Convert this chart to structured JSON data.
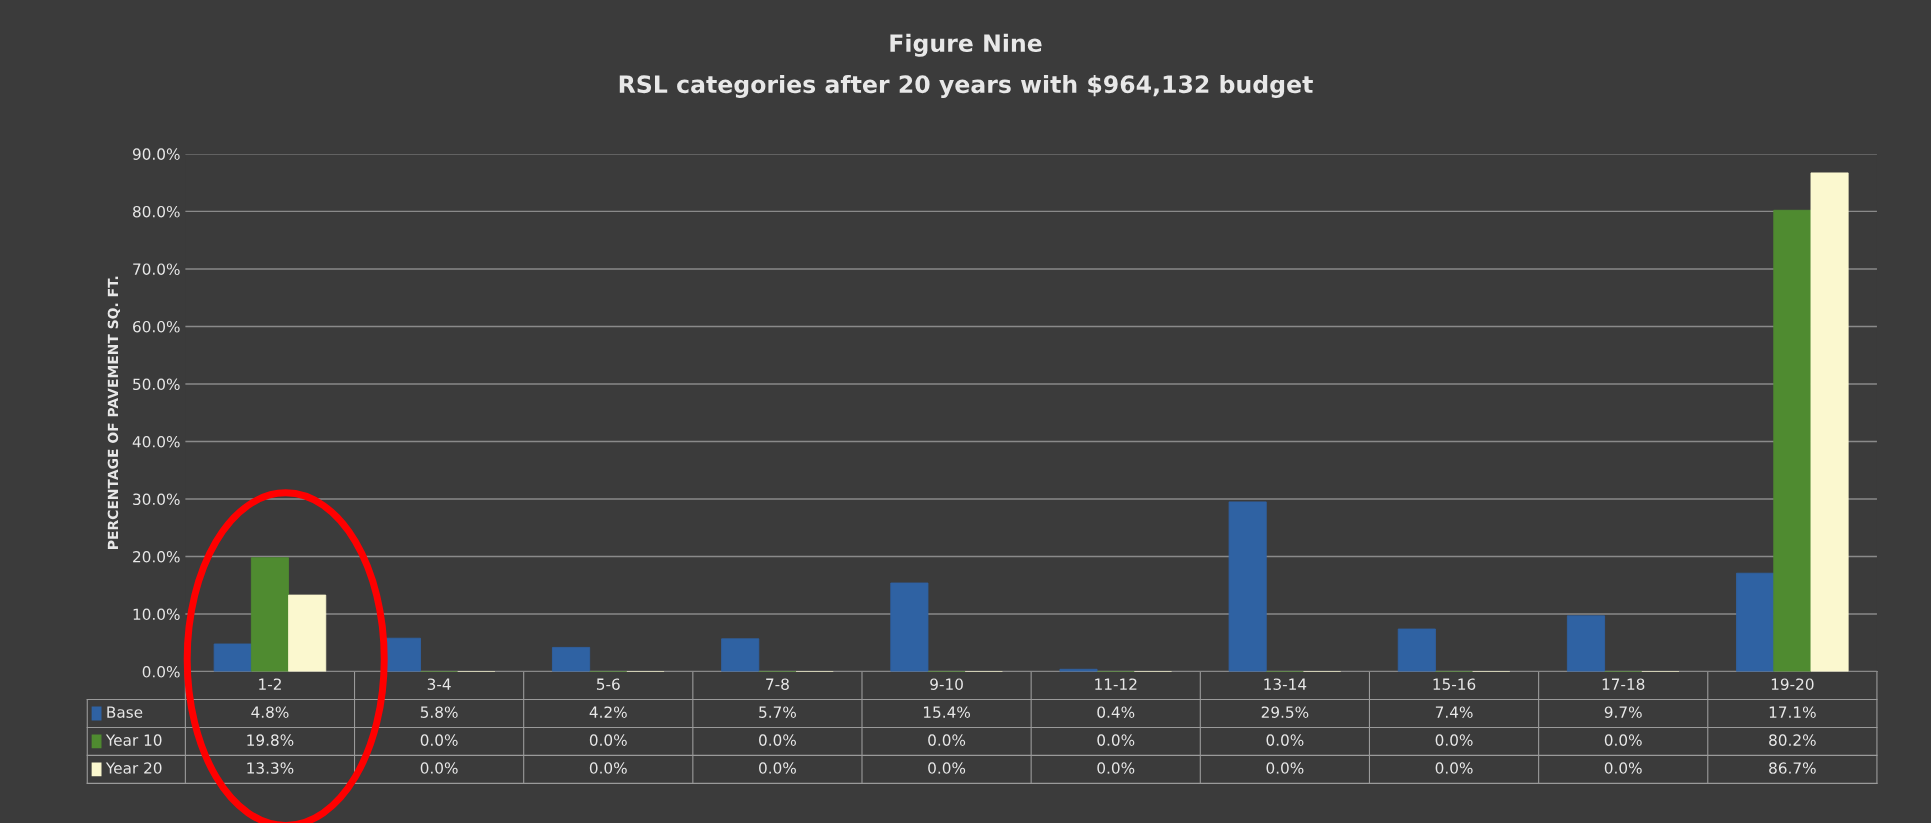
{
  "chart_data": {
    "type": "bar",
    "title": "Figure Nine",
    "subtitle": "RSL categories after 20 years with $964,132 budget",
    "ylabel": "PERCENTAGE OF PAVEMENT SQ. FT.",
    "categories": [
      "1-2",
      "3-4",
      "5-6",
      "7-8",
      "9-10",
      "11-12",
      "13-14",
      "15-16",
      "17-18",
      "19-20"
    ],
    "series": [
      {
        "name": "Base",
        "color": "#2f62a3",
        "values": [
          4.8,
          5.8,
          4.2,
          5.7,
          15.4,
          0.4,
          29.5,
          7.4,
          9.7,
          17.1
        ],
        "value_labels": [
          "4.8%",
          "5.8%",
          "4.2%",
          "5.7%",
          "15.4%",
          "0.4%",
          "29.5%",
          "7.4%",
          "9.7%",
          "17.1%"
        ]
      },
      {
        "name": "Year 10",
        "color": "#4f8b30",
        "values": [
          19.8,
          0.0,
          0.0,
          0.0,
          0.0,
          0.0,
          0.0,
          0.0,
          0.0,
          80.2
        ],
        "value_labels": [
          "19.8%",
          "0.0%",
          "0.0%",
          "0.0%",
          "0.0%",
          "0.0%",
          "0.0%",
          "0.0%",
          "0.0%",
          "80.2%"
        ]
      },
      {
        "name": "Year 20",
        "color": "#fbf8cf",
        "values": [
          13.3,
          0.0,
          0.0,
          0.0,
          0.0,
          0.0,
          0.0,
          0.0,
          0.0,
          86.7
        ],
        "value_labels": [
          "13.3%",
          "0.0%",
          "0.0%",
          "0.0%",
          "0.0%",
          "0.0%",
          "0.0%",
          "0.0%",
          "0.0%",
          "86.7%"
        ]
      }
    ],
    "ylim": [
      0,
      90
    ],
    "yticks": [
      {
        "value": 0,
        "label": "0.0%"
      },
      {
        "value": 10,
        "label": "10.0%"
      },
      {
        "value": 20,
        "label": "20.0%"
      },
      {
        "value": 30,
        "label": "30.0%"
      },
      {
        "value": 40,
        "label": "40.0%"
      },
      {
        "value": 50,
        "label": "50.0%"
      },
      {
        "value": 60,
        "label": "60.0%"
      },
      {
        "value": 70,
        "label": "70.0%"
      },
      {
        "value": 80,
        "label": "80.0%"
      },
      {
        "value": 90,
        "label": "90.0%"
      }
    ],
    "grid": "y",
    "legend": "bottom left"
  }
}
